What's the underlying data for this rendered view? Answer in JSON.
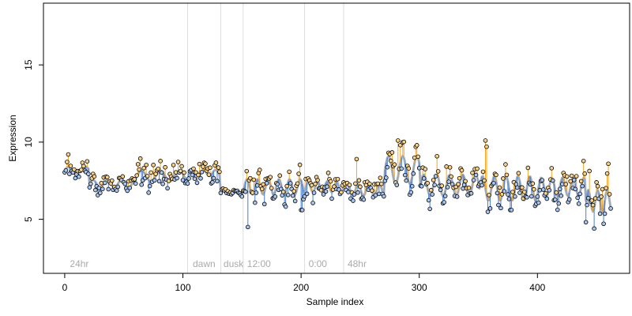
{
  "chart_data": {
    "type": "scatter",
    "title": "",
    "xlabel": "Sample index",
    "ylabel": "Expression",
    "xlim": [
      -18,
      478
    ],
    "ylim": [
      1.5,
      19
    ],
    "x_ticks": [
      0,
      100,
      200,
      300,
      400
    ],
    "y_ticks": [
      5,
      10,
      15
    ],
    "grid": false,
    "legend": "none",
    "colors": {
      "smooth_line": "#8aa4c8",
      "fit_line": "#b4b4b4",
      "residual_positive": "#f5a623",
      "residual_negative": "#4a7fd1",
      "marker_edge": "#000000",
      "separator": "#dcdcdc",
      "annotation": "#aaaaaa"
    },
    "separators_x": [
      104,
      132,
      151,
      203,
      236
    ],
    "annotations": [
      {
        "x": 3,
        "label": "24hr"
      },
      {
        "x": 107,
        "label": "dawn"
      },
      {
        "x": 133,
        "label": "dusk"
      },
      {
        "x": 153,
        "label": "12:00"
      },
      {
        "x": 205,
        "label": "0:00"
      },
      {
        "x": 238,
        "label": "48hr"
      }
    ],
    "segments": [
      {
        "x0": 0,
        "x1": 20,
        "level": 8.2,
        "noise": 0.38,
        "wave_amp": 0.2,
        "period": 14
      },
      {
        "x0": 21,
        "x1": 60,
        "level": 7.3,
        "noise": 0.45,
        "wave_amp": 0.25,
        "period": 12
      },
      {
        "x0": 61,
        "x1": 104,
        "level": 7.8,
        "noise": 0.6,
        "wave_amp": 0.35,
        "period": 16
      },
      {
        "x0": 105,
        "x1": 131,
        "level": 8.0,
        "noise": 0.55,
        "wave_amp": 0.2,
        "period": 10
      },
      {
        "x0": 132,
        "x1": 151,
        "level": 6.8,
        "noise": 0.15,
        "wave_amp": 0.1,
        "period": 10
      },
      {
        "x0": 152,
        "x1": 203,
        "level": 7.1,
        "noise": 0.75,
        "wave_amp": 0.5,
        "period": 9
      },
      {
        "x0": 204,
        "x1": 236,
        "level": 7.1,
        "noise": 0.55,
        "wave_amp": 0.35,
        "period": 8
      },
      {
        "x0": 237,
        "x1": 270,
        "level": 6.9,
        "noise": 0.5,
        "wave_amp": 0.4,
        "period": 9
      },
      {
        "x0": 271,
        "x1": 300,
        "level": 8.2,
        "noise": 0.8,
        "wave_amp": 0.9,
        "period": 12
      },
      {
        "x0": 301,
        "x1": 350,
        "level": 7.2,
        "noise": 0.7,
        "wave_amp": 0.7,
        "period": 11
      },
      {
        "x0": 351,
        "x1": 400,
        "level": 7.0,
        "noise": 0.8,
        "wave_amp": 0.8,
        "period": 10
      },
      {
        "x0": 401,
        "x1": 440,
        "level": 7.1,
        "noise": 0.7,
        "wave_amp": 0.6,
        "period": 9
      },
      {
        "x0": 441,
        "x1": 462,
        "level": 6.2,
        "noise": 0.9,
        "wave_amp": 0.7,
        "period": 8
      }
    ],
    "highlights": [
      {
        "x": 3,
        "y": 9.2
      },
      {
        "x": 155,
        "y": 4.5
      },
      {
        "x": 200,
        "y": 5.6
      },
      {
        "x": 201,
        "y": 5.6
      },
      {
        "x": 247,
        "y": 8.9
      },
      {
        "x": 282,
        "y": 10.1
      },
      {
        "x": 284,
        "y": 9.8
      },
      {
        "x": 356,
        "y": 10.1
      },
      {
        "x": 357,
        "y": 9.7
      },
      {
        "x": 377,
        "y": 5.6
      },
      {
        "x": 378,
        "y": 5.6
      },
      {
        "x": 448,
        "y": 4.4
      },
      {
        "x": 460,
        "y": 8.6
      }
    ]
  }
}
